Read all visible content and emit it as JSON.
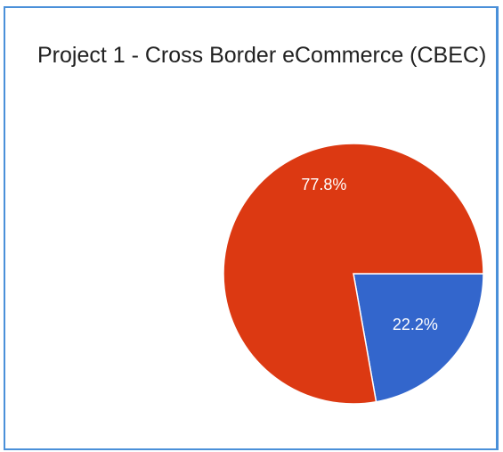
{
  "chart_data": {
    "type": "pie",
    "title": "Project 1 - Cross Border eCommerce (CBEC)",
    "slices": [
      {
        "value": 22.2,
        "label": "22.2%",
        "color": "#3366cc"
      },
      {
        "value": 77.8,
        "label": "77.8%",
        "color": "#dc3912"
      }
    ],
    "legend": "none"
  }
}
